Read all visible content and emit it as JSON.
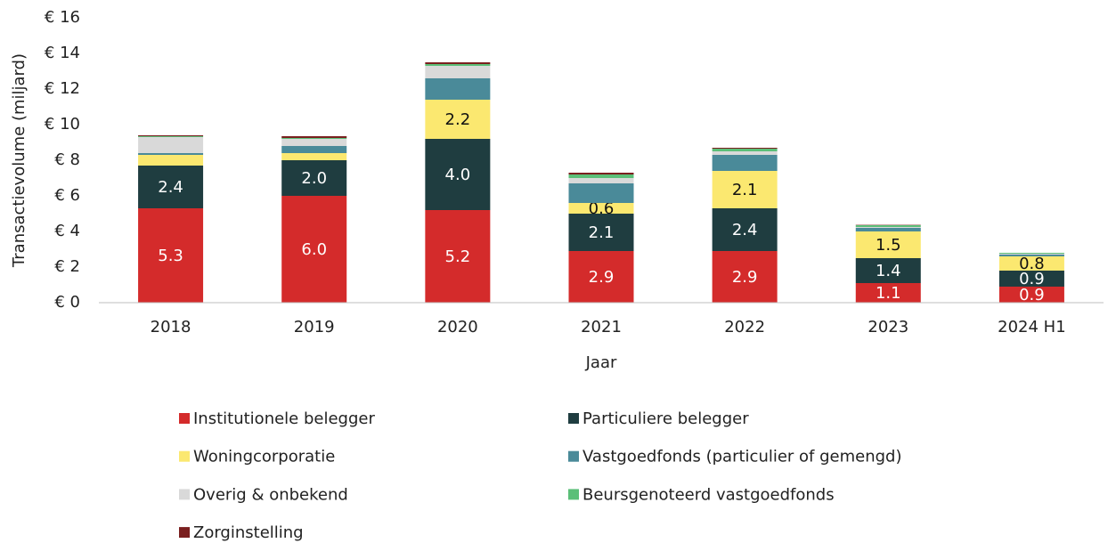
{
  "chart_data": {
    "type": "stacked_bar",
    "y_label": "Transactievolume (miljard)",
    "x_label": "Jaar",
    "categories": [
      "2018",
      "2019",
      "2020",
      "2021",
      "2022",
      "2023",
      "2024 H1"
    ],
    "ylim": [
      0,
      16
    ],
    "yticks": [
      {
        "value": 0,
        "label": "€ 0"
      },
      {
        "value": 2,
        "label": "€ 2"
      },
      {
        "value": 4,
        "label": "€ 4"
      },
      {
        "value": 6,
        "label": "€ 6"
      },
      {
        "value": 8,
        "label": "€ 8"
      },
      {
        "value": 10,
        "label": "€ 10"
      },
      {
        "value": 12,
        "label": "€ 12"
      },
      {
        "value": 14,
        "label": "€ 14"
      },
      {
        "value": 16,
        "label": "€ 16"
      }
    ],
    "grid": false,
    "series": [
      {
        "name": "Institutionele belegger",
        "color": "#d42b2b",
        "values": [
          5.3,
          6.0,
          5.2,
          2.9,
          2.9,
          1.1,
          0.9
        ],
        "value_labels": [
          "5.3",
          "6.0",
          "5.2",
          "2.9",
          "2.9",
          "1.1",
          "0.9"
        ],
        "label_color": "#ffffff"
      },
      {
        "name": "Particuliere belegger",
        "color": "#1f3d40",
        "values": [
          2.4,
          2.0,
          4.0,
          2.1,
          2.4,
          1.4,
          0.9
        ],
        "value_labels": [
          "2.4",
          "2.0",
          "4.0",
          "2.1",
          "2.4",
          "1.4",
          "0.9"
        ],
        "label_color": "#ffffff"
      },
      {
        "name": "Woningcorporatie",
        "color": "#fbe870",
        "values": [
          0.6,
          0.4,
          2.2,
          0.6,
          2.1,
          1.5,
          0.8
        ],
        "value_labels": [
          null,
          null,
          "2.2",
          "0.6",
          "2.1",
          "1.5",
          "0.8"
        ],
        "label_color": "#111111"
      },
      {
        "name": "Vastgoedfonds (particulier of gemengd)",
        "color": "#4a8a99",
        "values": [
          0.1,
          0.4,
          1.2,
          1.1,
          0.9,
          0.2,
          0.1
        ]
      },
      {
        "name": "Overig & onbekend",
        "color": "#d9d9d9",
        "values": [
          0.9,
          0.4,
          0.7,
          0.3,
          0.2,
          0.05,
          0.05
        ]
      },
      {
        "name": "Beursgenoteerd vastgoedfonds",
        "color": "#5bbf78",
        "values": [
          0.05,
          0.05,
          0.1,
          0.2,
          0.15,
          0.1,
          0.05
        ]
      },
      {
        "name": "Zorginstelling",
        "color": "#7a1f1f",
        "values": [
          0.05,
          0.1,
          0.1,
          0.1,
          0.05,
          0.02,
          0
        ]
      }
    ]
  }
}
